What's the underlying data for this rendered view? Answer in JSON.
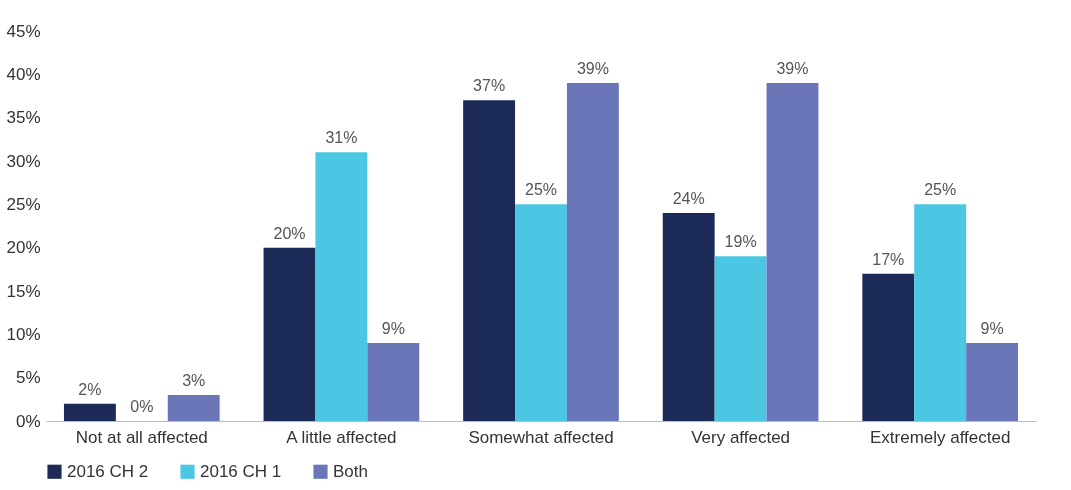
{
  "chart_data": {
    "type": "bar",
    "categories": [
      "Not at all affected",
      "A little affected",
      "Somewhat affected",
      "Very affected",
      "Extremely affected"
    ],
    "series": [
      {
        "name": "2016 CH 2",
        "color": "#1b2a57",
        "values": [
          2,
          20,
          37,
          24,
          17
        ],
        "value_labels": [
          "2%",
          "20%",
          "37%",
          "24%",
          "17%"
        ]
      },
      {
        "name": "2016 CH 1",
        "color": "#4cc7e3",
        "values": [
          0,
          31,
          25,
          19,
          25
        ],
        "value_labels": [
          "0%",
          "31%",
          "25%",
          "19%",
          "25%"
        ]
      },
      {
        "name": "Both",
        "color": "#6b76b9",
        "values": [
          3,
          9,
          39,
          39,
          9
        ],
        "value_labels": [
          "3%",
          "9%",
          "39%",
          "39%",
          "9%"
        ]
      }
    ],
    "ylim": [
      0,
      45
    ],
    "yticks": [
      {
        "value": 0,
        "label": "0%"
      },
      {
        "value": 5,
        "label": "5%"
      },
      {
        "value": 10,
        "label": "10%"
      },
      {
        "value": 15,
        "label": "15%"
      },
      {
        "value": 20,
        "label": "20%"
      },
      {
        "value": 25,
        "label": "25%"
      },
      {
        "value": 30,
        "label": "30%"
      },
      {
        "value": 35,
        "label": "35%"
      },
      {
        "value": 40,
        "label": "40%"
      },
      {
        "value": 45,
        "label": "45%"
      }
    ],
    "legend": "bottom"
  }
}
